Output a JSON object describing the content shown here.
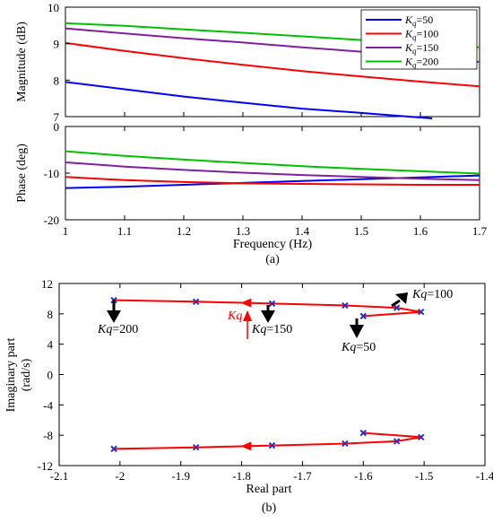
{
  "chart_data": [
    {
      "type": "line",
      "id": "magnitude",
      "ylabel": "Magnitude (dB)",
      "xlim": [
        1,
        1.7
      ],
      "ylim": [
        7,
        10
      ],
      "yticks": [
        "7",
        "8",
        "9",
        "10"
      ],
      "legend_placement": "top-right",
      "series": [
        {
          "name": "Kq=50",
          "sub": "q",
          "value_label": "=50",
          "color": "#0000ff",
          "x": [
            1,
            1.1,
            1.2,
            1.3,
            1.4,
            1.5,
            1.62
          ],
          "y": [
            7.95,
            7.75,
            7.55,
            7.38,
            7.22,
            7.1,
            6.95
          ]
        },
        {
          "name": "Kq=100",
          "sub": "q",
          "value_label": "=100",
          "color": "#ff0000",
          "x": [
            1,
            1.1,
            1.2,
            1.3,
            1.4,
            1.5,
            1.6,
            1.7
          ],
          "y": [
            9.02,
            8.8,
            8.6,
            8.42,
            8.25,
            8.1,
            7.96,
            7.83
          ]
        },
        {
          "name": "Kq=150",
          "sub": "q",
          "value_label": "=150",
          "color": "#8020a0",
          "x": [
            1,
            1.1,
            1.2,
            1.3,
            1.4,
            1.5,
            1.6,
            1.7
          ],
          "y": [
            9.42,
            9.28,
            9.15,
            9.03,
            8.9,
            8.78,
            8.64,
            8.5
          ]
        },
        {
          "name": "Kq=200",
          "sub": "q",
          "value_label": "=200",
          "color": "#00c000",
          "x": [
            1,
            1.1,
            1.2,
            1.3,
            1.4,
            1.5,
            1.6,
            1.7
          ],
          "y": [
            9.56,
            9.49,
            9.39,
            9.3,
            9.2,
            9.1,
            9.0,
            8.9
          ]
        }
      ]
    },
    {
      "type": "line",
      "id": "phase",
      "ylabel": "Phase (deg)",
      "xlabel": "Frequency (Hz)",
      "caption": "(a)",
      "xlim": [
        1,
        1.7
      ],
      "ylim": [
        -20,
        0
      ],
      "xticks": [
        "1",
        "1.1",
        "1.2",
        "1.3",
        "1.4",
        "1.5",
        "1.6",
        "1.7"
      ],
      "yticks": [
        "-20",
        "-10",
        "0"
      ],
      "series": [
        {
          "name": "Kq=50",
          "color": "#0000ff",
          "x": [
            1,
            1.1,
            1.2,
            1.3,
            1.4,
            1.5,
            1.6,
            1.7
          ],
          "y": [
            -13.2,
            -12.9,
            -12.5,
            -12.1,
            -11.7,
            -11.3,
            -10.9,
            -10.5
          ]
        },
        {
          "name": "Kq=100",
          "color": "#ff0000",
          "x": [
            1,
            1.1,
            1.2,
            1.3,
            1.4,
            1.5,
            1.6,
            1.7
          ],
          "y": [
            -10.8,
            -11.5,
            -11.9,
            -12.2,
            -12.3,
            -12.4,
            -12.5,
            -12.5
          ]
        },
        {
          "name": "Kq=150",
          "color": "#8020a0",
          "x": [
            1,
            1.1,
            1.2,
            1.3,
            1.4,
            1.5,
            1.6,
            1.7
          ],
          "y": [
            -7.7,
            -8.6,
            -9.3,
            -9.9,
            -10.4,
            -10.8,
            -11.2,
            -11.5
          ]
        },
        {
          "name": "Kq=200",
          "color": "#00c000",
          "x": [
            1,
            1.1,
            1.2,
            1.3,
            1.4,
            1.5,
            1.6,
            1.7
          ],
          "y": [
            -5.3,
            -6.3,
            -7.1,
            -7.8,
            -8.5,
            -9.1,
            -9.6,
            -10.1
          ]
        }
      ]
    },
    {
      "type": "scatter",
      "id": "root-locus",
      "xlabel": "Real part",
      "ylabel_line1": "Imaginary part",
      "ylabel_line2": "(rad/s)",
      "caption": "(b)",
      "xlim": [
        -2.1,
        -1.4
      ],
      "ylim": [
        -12,
        12
      ],
      "xticks": [
        "-2.1",
        "-2",
        "-1.9",
        "-1.8",
        "-1.7",
        "-1.6",
        "-1.5",
        "-1.4"
      ],
      "yticks": [
        "-12",
        "-8",
        "-4",
        "0",
        "4",
        "8",
        "12"
      ],
      "marker_color": "#3030c0",
      "line_color": "#ff0000",
      "upper_points": {
        "x": [
          -2.01,
          -1.875,
          -1.75,
          -1.63,
          -1.545,
          -1.505,
          -1.6
        ],
        "y": [
          9.8,
          9.6,
          9.35,
          9.1,
          8.8,
          8.25,
          7.7
        ]
      },
      "lower_points": {
        "x": [
          -2.01,
          -1.875,
          -1.75,
          -1.63,
          -1.545,
          -1.505,
          -1.6
        ],
        "y": [
          -9.8,
          -9.6,
          -9.35,
          -9.1,
          -8.8,
          -8.25,
          -7.7
        ]
      },
      "annotations": [
        {
          "text": "Kq=200",
          "prefix": "Kq",
          "suffix": "=200",
          "color": "#000000"
        },
        {
          "text": "Kq=150",
          "prefix": "Kq",
          "suffix": "=150",
          "color": "#000000"
        },
        {
          "text": "Kq=50",
          "prefix": "Kq",
          "suffix": "=50",
          "color": "#000000"
        },
        {
          "text": "Kq=100",
          "prefix": "Kq",
          "suffix": "=100",
          "color": "#000000"
        },
        {
          "text": "Kq",
          "prefix": "Kq",
          "suffix": "",
          "color": "#ff0000"
        }
      ]
    }
  ]
}
